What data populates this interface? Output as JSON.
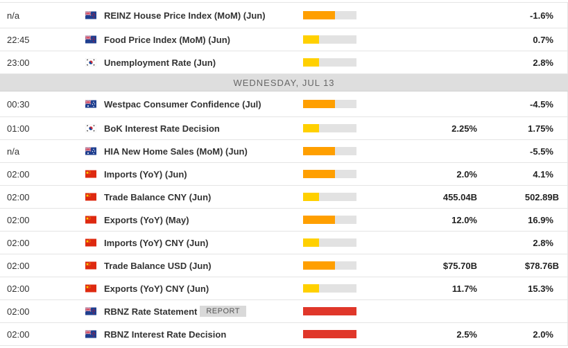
{
  "colors": {
    "low": "#ffd000",
    "medium": "#ff9f00",
    "high": "#e0372a",
    "bar_bg": "#e2e2e2"
  },
  "rows_before": [
    {
      "time": "n/a",
      "flag": "nz",
      "event": "REINZ House Price Index (MoM) (Jun)",
      "impact": "medium",
      "actual": "",
      "previous": "-1.6%"
    },
    {
      "time": "22:45",
      "flag": "nz",
      "event": "Food Price Index (MoM) (Jun)",
      "impact": "low",
      "actual": "",
      "previous": "0.7%"
    },
    {
      "time": "23:00",
      "flag": "kr",
      "event": "Unemployment Rate (Jun)",
      "impact": "low",
      "actual": "",
      "previous": "2.8%"
    }
  ],
  "day_header": "WEDNESDAY, JUL 13",
  "rows_after": [
    {
      "time": "00:30",
      "flag": "au",
      "event": "Westpac Consumer Confidence (Jul)",
      "impact": "medium",
      "actual": "",
      "previous": "-4.5%"
    },
    {
      "time": "01:00",
      "flag": "kr",
      "event": "BoK Interest Rate Decision",
      "impact": "low",
      "actual": "2.25%",
      "previous": "1.75%"
    },
    {
      "time": "n/a",
      "flag": "au",
      "event": "HIA New Home Sales (MoM) (Jun)",
      "impact": "medium",
      "actual": "",
      "previous": "-5.5%"
    },
    {
      "time": "02:00",
      "flag": "cn",
      "event": "Imports (YoY) (Jun)",
      "impact": "medium",
      "actual": "2.0%",
      "previous": "4.1%"
    },
    {
      "time": "02:00",
      "flag": "cn",
      "event": "Trade Balance CNY (Jun)",
      "impact": "low",
      "actual": "455.04B",
      "previous": "502.89B"
    },
    {
      "time": "02:00",
      "flag": "cn",
      "event": "Exports (YoY) (May)",
      "impact": "medium",
      "actual": "12.0%",
      "previous": "16.9%"
    },
    {
      "time": "02:00",
      "flag": "cn",
      "event": "Imports (YoY) CNY (Jun)",
      "impact": "low",
      "actual": "",
      "previous": "2.8%"
    },
    {
      "time": "02:00",
      "flag": "cn",
      "event": "Trade Balance USD (Jun)",
      "impact": "medium",
      "actual": "$75.70B",
      "previous": "$78.76B"
    },
    {
      "time": "02:00",
      "flag": "cn",
      "event": "Exports (YoY) CNY (Jun)",
      "impact": "low",
      "actual": "11.7%",
      "previous": "15.3%"
    },
    {
      "time": "02:00",
      "flag": "nz",
      "event": "RBNZ Rate Statement",
      "badge": "REPORT",
      "impact": "high",
      "actual": "",
      "previous": ""
    },
    {
      "time": "02:00",
      "flag": "nz",
      "event": "RBNZ Interest Rate Decision",
      "impact": "high",
      "actual": "2.5%",
      "previous": "2.0%"
    }
  ]
}
